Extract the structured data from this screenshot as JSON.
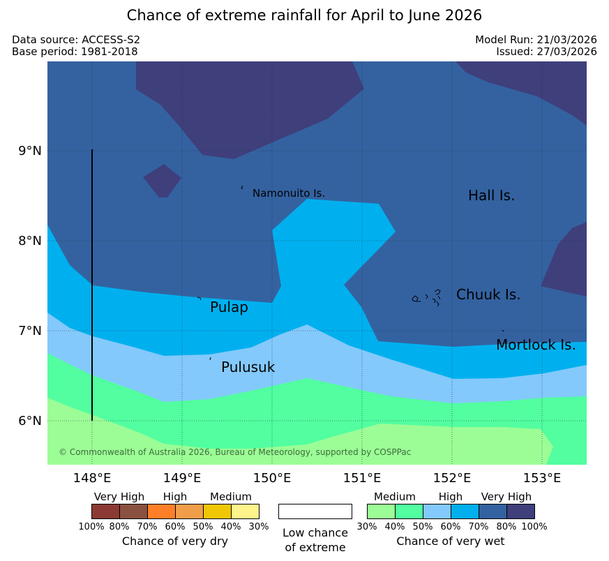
{
  "title": "Chance of extreme rainfall for April to June 2026",
  "meta": {
    "source": "Data source: ACCESS-S2",
    "base": "Base period: 1981-2018",
    "model_run": "Model Run: 21/03/2026",
    "issued": "Issued: 27/03/2026"
  },
  "map": {
    "lon_labels": [
      "148°E",
      "149°E",
      "150°E",
      "151°E",
      "152°E",
      "153°E"
    ],
    "lat_labels": [
      "9°N",
      "8°N",
      "7°N",
      "6°N"
    ],
    "places": {
      "namonuito": "Namonuito Is.",
      "hall": "Hall Is.",
      "pulap": "Pulap",
      "chuuk": "Chuuk Is.",
      "mortlock": "Mortlock Is.",
      "pulusuk": "Pulusuk"
    },
    "copyright": "© Commonwealth of Australia 2026, Bureau of Meteorology, supported by COSPPac",
    "colors": {
      "wet_very_high_top": "#3f3f7c",
      "wet_very_high": "#3462a0",
      "wet_high_70": "#00b0ee",
      "wet_high_60": "#83c9fb",
      "wet_medium_50": "#52fea0",
      "wet_medium_40": "#9cfd96"
    }
  },
  "legend": {
    "dry": {
      "categories": [
        "Very High",
        "High",
        "Medium"
      ],
      "ticks": [
        "100%",
        "80%",
        "70%",
        "60%",
        "50%",
        "40%",
        "30%"
      ],
      "colors": [
        "#8c3b34",
        "#8b5140",
        "#fe7f27",
        "#f09e4a",
        "#f0c707",
        "#fff38b"
      ],
      "caption": "Chance of very dry"
    },
    "low": {
      "line1": "Low chance",
      "line2": "of extreme"
    },
    "wet": {
      "categories": [
        "Medium",
        "High",
        "Very High"
      ],
      "ticks": [
        "30%",
        "40%",
        "50%",
        "60%",
        "70%",
        "80%",
        "100%"
      ],
      "colors": [
        "#9cfd96",
        "#52fea0",
        "#83c9fb",
        "#00b0ee",
        "#3462a0",
        "#3f3f7c"
      ],
      "caption": "Chance of very wet"
    }
  }
}
